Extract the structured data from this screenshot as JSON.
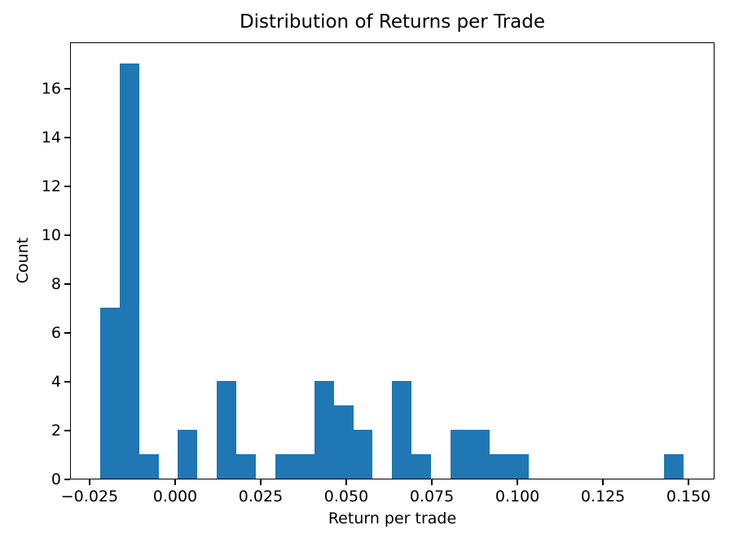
{
  "chart_data": {
    "type": "bar",
    "chart_kind": "histogram",
    "title": "Distribution of Returns per Trade",
    "xlabel": "Return per trade",
    "ylabel": "Count",
    "bar_color": "#1f77b4",
    "axis_color": "#000000",
    "background_color": "#ffffff",
    "grid": false,
    "xlim": [
      -0.0307,
      0.1576
    ],
    "ylim": [
      0,
      17.9
    ],
    "bin_edges": [
      -0.0221,
      -0.0164,
      -0.0107,
      -0.005,
      0.0006,
      0.0063,
      0.012,
      0.0177,
      0.0234,
      0.0291,
      0.0348,
      0.0404,
      0.0461,
      0.0518,
      0.0575,
      0.0632,
      0.0689,
      0.0745,
      0.0802,
      0.0859,
      0.0916,
      0.0973,
      0.103,
      0.1086,
      0.1143,
      0.12,
      0.1257,
      0.1314,
      0.1371,
      0.1427,
      0.1484
    ],
    "counts": [
      7,
      17,
      1,
      0,
      2,
      0,
      4,
      1,
      0,
      1,
      1,
      4,
      3,
      2,
      0,
      4,
      1,
      0,
      2,
      2,
      1,
      1,
      0,
      0,
      0,
      0,
      0,
      0,
      0,
      1
    ],
    "xticks": {
      "values": [
        -0.025,
        0.0,
        0.025,
        0.05,
        0.075,
        0.1,
        0.125,
        0.15
      ],
      "labels": [
        "−0.025",
        "0.000",
        "0.025",
        "0.050",
        "0.075",
        "0.100",
        "0.125",
        "0.150"
      ]
    },
    "yticks": {
      "values": [
        0,
        2,
        4,
        6,
        8,
        10,
        12,
        14,
        16
      ],
      "labels": [
        "0",
        "2",
        "4",
        "6",
        "8",
        "10",
        "12",
        "14",
        "16"
      ]
    }
  }
}
